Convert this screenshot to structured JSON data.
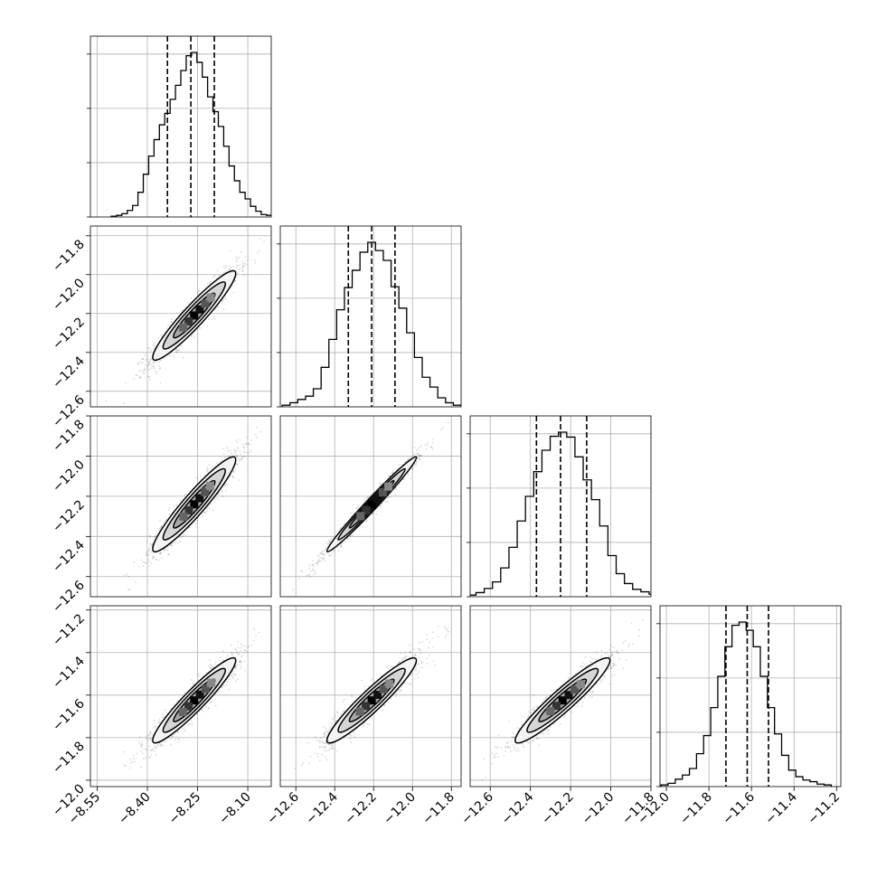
{
  "chart_data": {
    "type": "corner",
    "grid": true,
    "parameters": [
      {
        "range": [
          -8.57,
          -8.03
        ],
        "ticks": [
          -8.55,
          -8.4,
          -8.25,
          -8.1
        ],
        "tick_labels": [
          "−8.55",
          "−8.40",
          "−8.25",
          "−8.10"
        ],
        "quantiles": [
          -8.34,
          -8.27,
          -8.2
        ],
        "center": -8.26,
        "sd": 0.062
      },
      {
        "range": [
          -12.68,
          -11.75
        ],
        "ticks": [
          -12.6,
          -12.4,
          -12.2,
          -12.0,
          -11.8
        ],
        "tick_labels": [
          "−12.6",
          "−12.4",
          "−12.2",
          "−12.0",
          "−11.8"
        ],
        "quantiles": [
          -12.33,
          -12.21,
          -12.09
        ],
        "center": -12.21,
        "sd": 0.115
      },
      {
        "range": [
          -12.7,
          -11.8
        ],
        "ticks": [
          -12.6,
          -12.4,
          -12.2,
          -12.0,
          -11.8
        ],
        "tick_labels": [
          "−12.6",
          "−12.4",
          "−12.2",
          "−12.0",
          "−11.8"
        ],
        "quantiles": [
          -12.37,
          -12.25,
          -12.12
        ],
        "center": -12.24,
        "sd": 0.118
      },
      {
        "range": [
          -12.03,
          -11.18
        ],
        "ticks": [
          -12.0,
          -11.8,
          -11.6,
          -11.4,
          -11.2
        ],
        "tick_labels": [
          "−12.0",
          "−11.8",
          "−11.6",
          "−11.4",
          "−11.2"
        ],
        "quantiles": [
          -11.72,
          -11.62,
          -11.52
        ],
        "center": -11.625,
        "sd": 0.1
      }
    ],
    "histograms": [
      [
        1,
        2,
        4,
        8,
        14,
        30,
        52,
        74,
        94,
        112,
        126,
        143,
        160,
        178,
        196,
        200,
        188,
        170,
        146,
        128,
        110,
        86,
        62,
        44,
        30,
        22,
        13,
        7,
        3,
        2,
        1
      ],
      [
        2,
        5,
        9,
        13,
        22,
        48,
        82,
        118,
        145,
        166,
        188,
        200,
        190,
        178,
        146,
        120,
        90,
        60,
        36,
        24,
        11,
        5,
        2
      ],
      [
        2,
        5,
        10,
        18,
        35,
        60,
        92,
        122,
        152,
        178,
        195,
        200,
        194,
        170,
        142,
        118,
        86,
        50,
        28,
        16,
        9,
        6,
        3
      ],
      [
        2,
        4,
        9,
        14,
        22,
        40,
        62,
        96,
        134,
        170,
        196,
        200,
        190,
        170,
        134,
        96,
        64,
        38,
        20,
        12,
        8,
        6,
        3,
        2
      ]
    ],
    "scatter_alpha": 0.15
  }
}
